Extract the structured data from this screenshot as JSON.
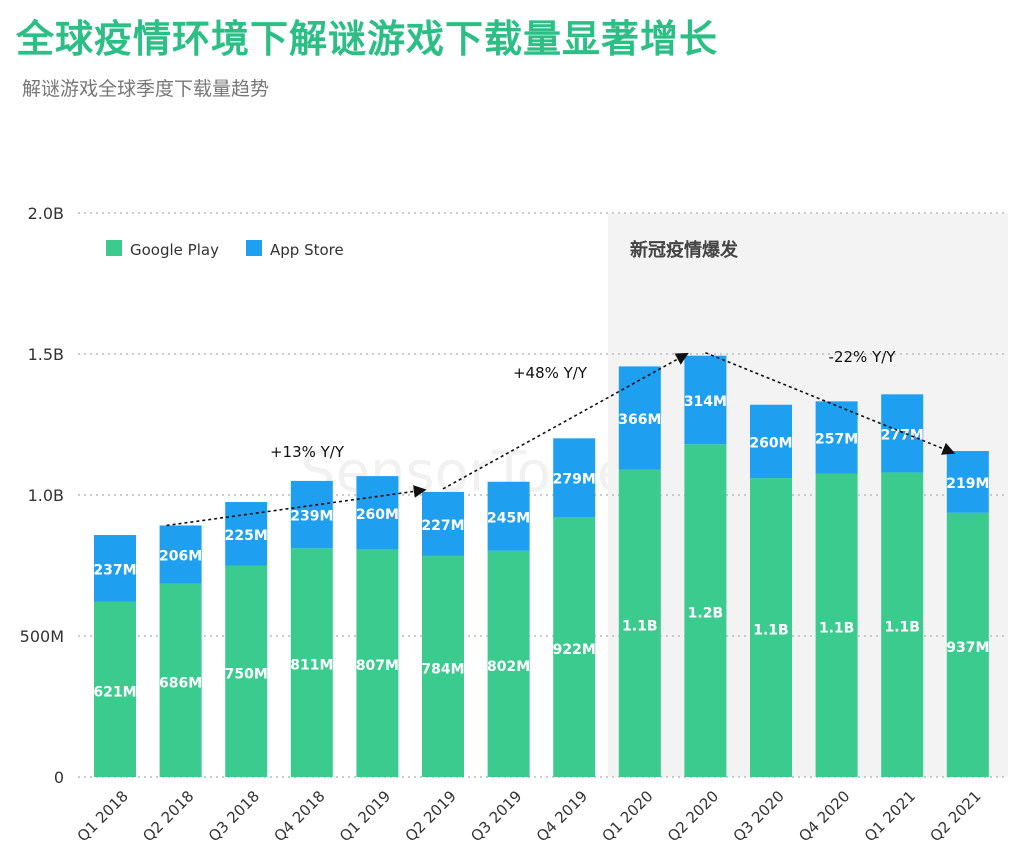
{
  "title": "全球疫情环境下解谜游戏下载量显著增长",
  "subtitle": "解谜游戏全球季度下载量趋势",
  "watermark": "SensorTower",
  "colors": {
    "google_play": "#3ccb8f",
    "app_store": "#1e9ff0",
    "title": "#2bbf85",
    "shade": "#f3f3f3"
  },
  "chart_data": {
    "type": "bar",
    "stacked": true,
    "categories": [
      "Q1 2018",
      "Q2 2018",
      "Q3 2018",
      "Q4 2018",
      "Q1 2019",
      "Q2 2019",
      "Q3 2019",
      "Q4 2019",
      "Q1 2020",
      "Q2 2020",
      "Q3 2020",
      "Q4 2020",
      "Q1 2021",
      "Q2 2021"
    ],
    "series": [
      {
        "name": "Google Play",
        "color": "#3ccb8f",
        "values": [
          621,
          686,
          750,
          811,
          807,
          784,
          802,
          922,
          1090,
          1180,
          1060,
          1075,
          1080,
          937
        ],
        "labels": [
          "621M",
          "686M",
          "750M",
          "811M",
          "807M",
          "784M",
          "802M",
          "922M",
          "1.1B",
          "1.2B",
          "1.1B",
          "1.1B",
          "1.1B",
          "937M"
        ]
      },
      {
        "name": "App Store",
        "color": "#1e9ff0",
        "values": [
          237,
          206,
          225,
          239,
          260,
          227,
          245,
          279,
          366,
          314,
          260,
          257,
          277,
          219
        ],
        "labels": [
          "237M",
          "206M",
          "225M",
          "239M",
          "260M",
          "227M",
          "245M",
          "279M",
          "366M",
          "314M",
          "260M",
          "257M",
          "277M",
          "219M"
        ]
      }
    ],
    "y_unit": "M downloads",
    "ylim": [
      0,
      2000
    ],
    "yticks": [
      {
        "value": 0,
        "label": "0"
      },
      {
        "value": 500,
        "label": "500M"
      },
      {
        "value": 1000,
        "label": "1.0B"
      },
      {
        "value": 1500,
        "label": "1.5B"
      },
      {
        "value": 2000,
        "label": "2.0B"
      }
    ],
    "grid": true,
    "legend_position": "top-left",
    "highlight_region": {
      "from": "Q1 2020",
      "to": "Q2 2021",
      "label": "新冠疫情爆发"
    },
    "annotations": [
      {
        "text": "+13% Y/Y",
        "from": "Q2 2018",
        "to": "Q2 2019"
      },
      {
        "text": "+48% Y/Y",
        "from": "Q2 2019",
        "to": "Q2 2020"
      },
      {
        "text": "-22% Y/Y",
        "from": "Q2 2020",
        "to": "Q2 2021"
      }
    ]
  }
}
